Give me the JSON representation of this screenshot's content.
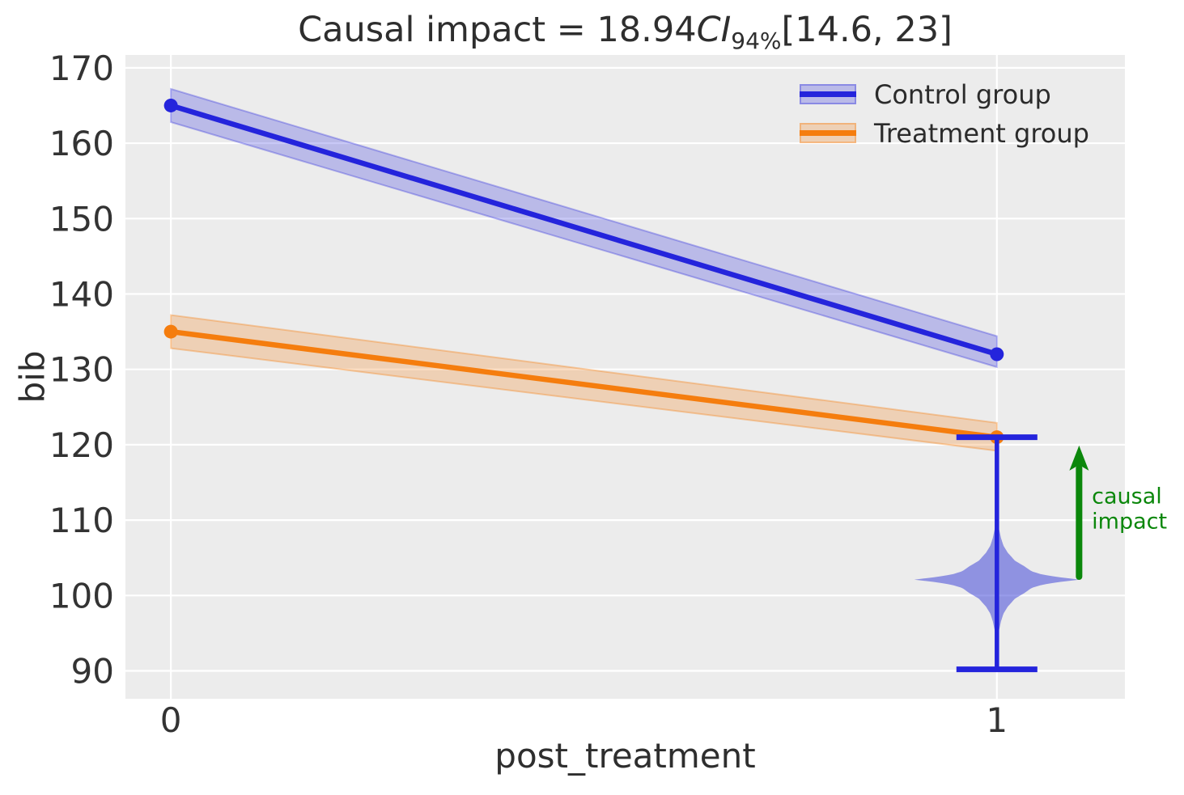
{
  "title": {
    "prefix": "Causal impact = 18.94",
    "ci": "CI",
    "ci_subscript": "94%",
    "suffix": "[14.6, 23]"
  },
  "axes": {
    "xlabel": "post_treatment",
    "ylabel": "bib",
    "x_tick_labels": [
      "0",
      "1"
    ],
    "y_tick_labels": [
      "90",
      "100",
      "110",
      "120",
      "130",
      "140",
      "150",
      "160",
      "170"
    ]
  },
  "legend": {
    "items": [
      {
        "label": "Control group"
      },
      {
        "label": "Treatment group"
      }
    ]
  },
  "colors": {
    "figure_bg": "#ffffff",
    "plot_bg": "#ececec",
    "grid": "#ffffff",
    "text": "#2e2e2e",
    "tick_text": "#333333",
    "violin": "rgba(58,64,214,0.52)",
    "whisker": "#2424dc",
    "arrow": "#0b870b",
    "annotation": "#0b870b"
  },
  "chart_data": {
    "type": "line",
    "title_value": "Causal impact = 18.94 CI 94% [14.6, 23]",
    "xlabel": "post_treatment",
    "ylabel": "bib",
    "x": [
      0,
      1
    ],
    "x_ticks": [
      0,
      1
    ],
    "y_ticks": [
      90,
      100,
      110,
      120,
      130,
      140,
      150,
      160,
      170
    ],
    "x_range": [
      -0.055,
      1.155
    ],
    "y_range": [
      86.3,
      171.7
    ],
    "grid": true,
    "legend_position": "upper right",
    "series": [
      {
        "name": "Control group",
        "values": [
          165,
          132
        ],
        "ci_low": [
          162.8,
          130.3
        ],
        "ci_high": [
          167.2,
          134.4
        ],
        "color": "#2424dc",
        "band_fill": "rgba(36,36,220,0.25)",
        "band_edge": "rgba(36,36,220,0.32)"
      },
      {
        "name": "Treatment group",
        "values": [
          135,
          121
        ],
        "ci_low": [
          132.8,
          119.2
        ],
        "ci_high": [
          137.2,
          122.9
        ],
        "color": "#f57d0e",
        "band_fill": "rgba(245,125,14,0.25)",
        "band_edge": "rgba(245,125,14,0.35)"
      }
    ],
    "violin": {
      "x": 1,
      "center": 102.1,
      "whisker_low": 90.2,
      "whisker_high": 121,
      "cap_half_width": 0.049,
      "profile": [
        [
          0,
          0.1
        ],
        [
          0.35,
          0.073
        ],
        [
          0.7,
          0.054
        ],
        [
          1.1,
          0.042
        ],
        [
          1.8,
          0.033
        ],
        [
          2.5,
          0.022
        ],
        [
          3.6,
          0.013
        ],
        [
          4.5,
          0.008
        ],
        [
          5.5,
          0.005
        ],
        [
          7.0,
          0.002
        ],
        [
          9.0,
          0.0008
        ]
      ]
    },
    "arrow": {
      "x": 1.0995,
      "from": 102.5,
      "to": 119.9
    },
    "annotation": {
      "x": 1.115,
      "y": 113.3,
      "lines": [
        "causal",
        "impact"
      ]
    }
  }
}
